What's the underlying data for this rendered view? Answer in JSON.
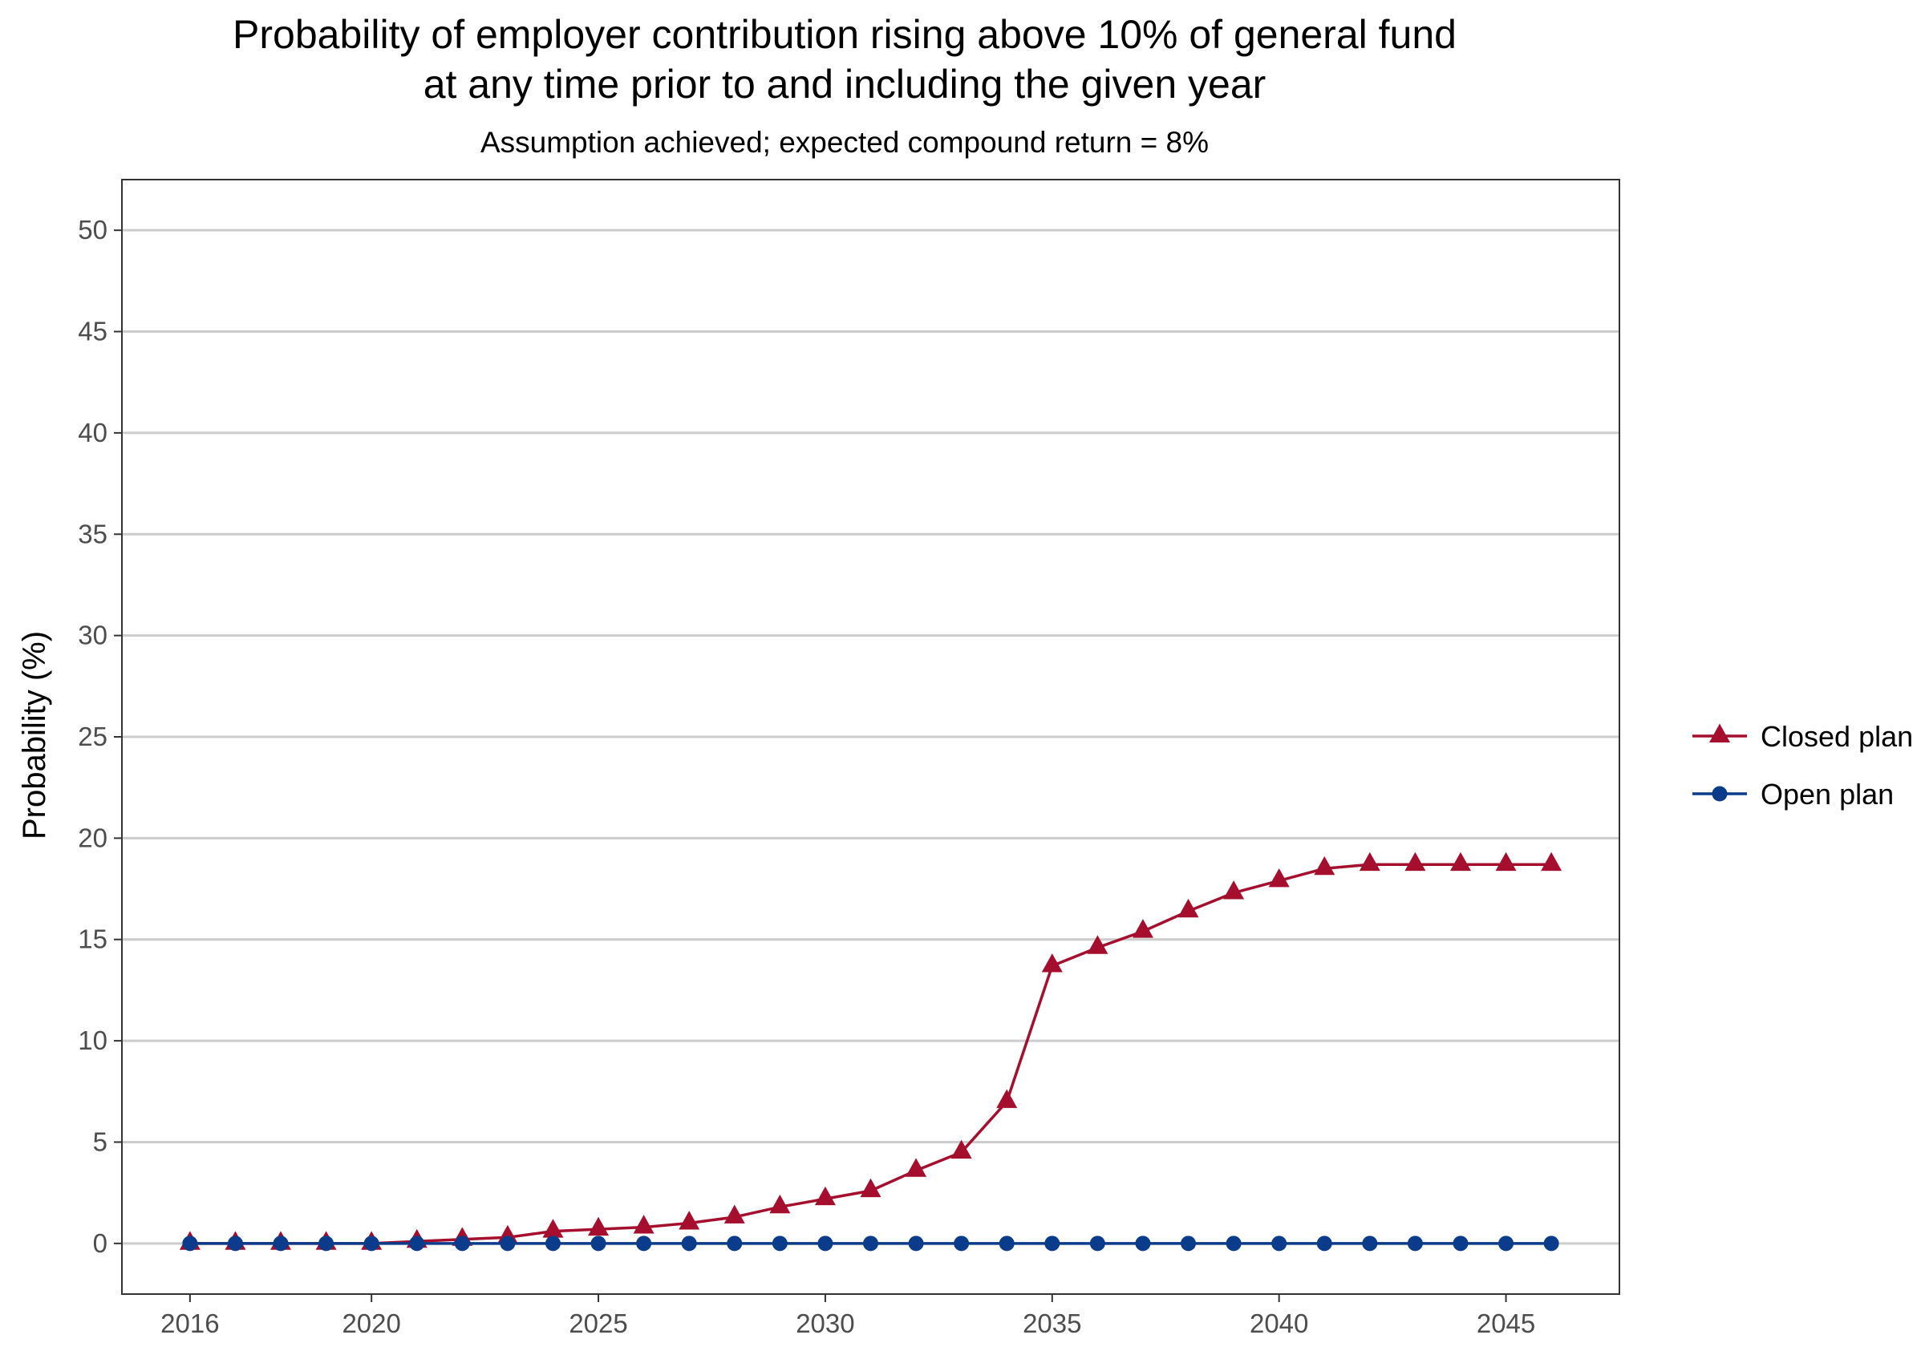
{
  "chart_data": {
    "type": "line",
    "title_line1": "Probability of employer contribution rising above 10% of general fund",
    "title_line2": "at any time prior to and including the given year",
    "subtitle": "Assumption achieved; expected compound return = 8%",
    "xlabel": "",
    "ylabel": "Probability (%)",
    "xlim": [
      2014.5,
      2047.5
    ],
    "ylim": [
      -2.5,
      52.5
    ],
    "x_ticks": [
      2016,
      2020,
      2025,
      2030,
      2035,
      2040,
      2045
    ],
    "y_ticks": [
      0,
      5,
      10,
      15,
      20,
      25,
      30,
      35,
      40,
      45,
      50
    ],
    "grid": "horizontal major lines",
    "legend_position": "right",
    "x": [
      2016,
      2017,
      2018,
      2019,
      2020,
      2021,
      2022,
      2023,
      2024,
      2025,
      2026,
      2027,
      2028,
      2029,
      2030,
      2031,
      2032,
      2033,
      2034,
      2035,
      2036,
      2037,
      2038,
      2039,
      2040,
      2041,
      2042,
      2043,
      2044,
      2045,
      2046
    ],
    "series": [
      {
        "name": "Closed plan",
        "color": "#a50f2d",
        "marker": "triangle",
        "values": [
          0,
          0,
          0,
          0,
          0,
          0.1,
          0.2,
          0.3,
          0.6,
          0.7,
          0.8,
          1.0,
          1.3,
          1.8,
          2.2,
          2.6,
          3.6,
          4.5,
          7.0,
          13.7,
          14.6,
          15.4,
          16.4,
          17.3,
          17.9,
          18.5,
          18.7,
          18.7,
          18.7,
          18.7,
          18.7
        ]
      },
      {
        "name": "Open plan",
        "color": "#0b3c8c",
        "marker": "circle",
        "values": [
          0,
          0,
          0,
          0,
          0,
          0,
          0,
          0,
          0,
          0,
          0,
          0,
          0,
          0,
          0,
          0,
          0,
          0,
          0,
          0,
          0,
          0,
          0,
          0,
          0,
          0,
          0,
          0,
          0,
          0,
          0
        ]
      }
    ]
  }
}
